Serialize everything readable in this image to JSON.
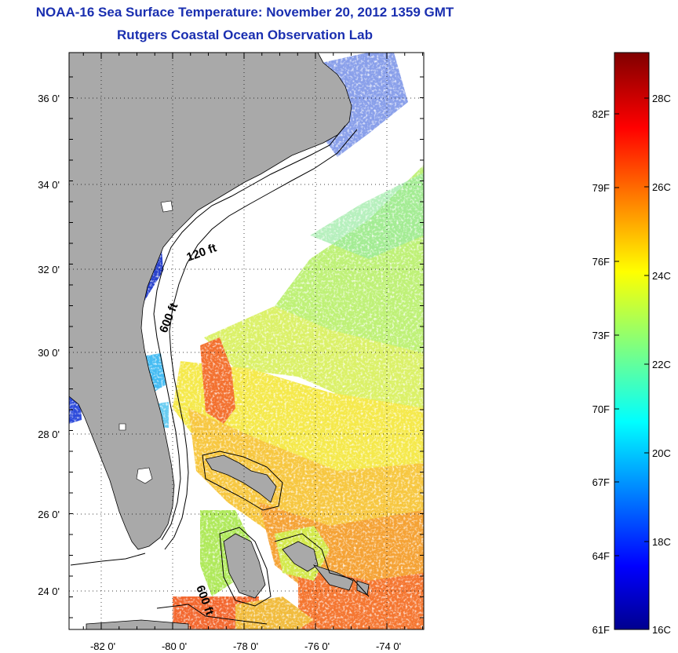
{
  "title": "NOAA-16 Sea Surface Temperature:  November 20, 2012 1359 GMT",
  "subtitle": "Rutgers Coastal Ocean Observation Lab",
  "map": {
    "lon_range": [
      -83,
      -73
    ],
    "lat_range": [
      23,
      37
    ],
    "x_tick_labels": [
      "-82 0'",
      "-80 0'",
      "-78 0'",
      "-76 0'",
      "-74 0'"
    ],
    "y_tick_labels": [
      "36 0'",
      "34 0'",
      "32 0'",
      "30 0'",
      "28 0'",
      "26 0'",
      "24 0'"
    ],
    "grid": "dotted",
    "land_color": "#a9a9a9",
    "isobath_labels": [
      "120 ft",
      "600 ft",
      "600 ft"
    ]
  },
  "colorbar": {
    "fahrenheit_labels": [
      "82F",
      "79F",
      "76F",
      "73F",
      "70F",
      "67F",
      "64F",
      "61F"
    ],
    "celsius_labels": [
      "28C",
      "26C",
      "24C",
      "22C",
      "20C",
      "18C",
      "16C"
    ],
    "range_c": [
      16,
      29
    ],
    "colormap": "jet"
  }
}
